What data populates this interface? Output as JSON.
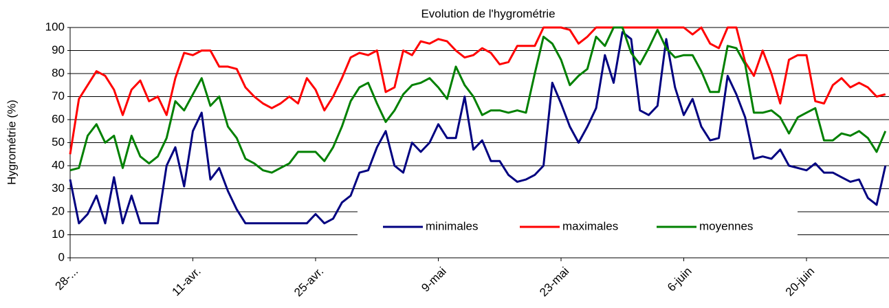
{
  "chart_data": {
    "type": "line",
    "title": "Evolution de l'hygrométrie",
    "y_label": "Hygrométrie (%)",
    "categories": [
      "28-...",
      null,
      null,
      null,
      null,
      null,
      null,
      null,
      null,
      null,
      null,
      null,
      null,
      null,
      "11-avr.",
      null,
      null,
      null,
      null,
      null,
      null,
      null,
      null,
      null,
      null,
      null,
      null,
      null,
      "25-avr.",
      null,
      null,
      null,
      null,
      null,
      null,
      null,
      null,
      null,
      null,
      null,
      null,
      null,
      "9-mai",
      null,
      null,
      null,
      null,
      null,
      null,
      null,
      null,
      null,
      null,
      null,
      null,
      null,
      "23-mai",
      null,
      null,
      null,
      null,
      null,
      null,
      null,
      null,
      null,
      null,
      null,
      null,
      null,
      "6-juin",
      null,
      null,
      null,
      null,
      null,
      null,
      null,
      null,
      null,
      null,
      null,
      null,
      null,
      "20-juin",
      null,
      null,
      null,
      null,
      null,
      null,
      null,
      null,
      null
    ],
    "series": [
      {
        "name": "minimales",
        "color": "#000080",
        "values": [
          34,
          15,
          19,
          27,
          15,
          35,
          15,
          27,
          15,
          15,
          15,
          40,
          48,
          31,
          55,
          63,
          34,
          39,
          29,
          21,
          15,
          15,
          15,
          15,
          15,
          15,
          15,
          15,
          19,
          15,
          17,
          24,
          27,
          37,
          38,
          48,
          55,
          40,
          37,
          50,
          46,
          50,
          58,
          52,
          52,
          70,
          47,
          51,
          42,
          42,
          36,
          33,
          34,
          36,
          40,
          76,
          67,
          57,
          50,
          57,
          65,
          88,
          76,
          98,
          95,
          64,
          62,
          66,
          95,
          74,
          62,
          69,
          57,
          51,
          52,
          79,
          71,
          61,
          43,
          44,
          43,
          47,
          40,
          39,
          38,
          41,
          37,
          37,
          35,
          33,
          34,
          26,
          23,
          40
        ]
      },
      {
        "name": "maximales",
        "color": "#ff0000",
        "values": [
          45,
          69,
          75,
          81,
          79,
          73,
          62,
          73,
          77,
          68,
          70,
          62,
          78,
          89,
          88,
          90,
          90,
          83,
          83,
          82,
          74,
          70,
          67,
          65,
          67,
          70,
          67,
          78,
          73,
          64,
          70,
          78,
          87,
          89,
          88,
          90,
          72,
          74,
          90,
          88,
          94,
          93,
          95,
          94,
          90,
          87,
          88,
          91,
          89,
          84,
          85,
          92,
          92,
          92,
          100,
          100,
          100,
          99,
          93,
          96,
          100,
          100,
          100,
          100,
          100,
          100,
          100,
          100,
          100,
          100,
          100,
          97,
          100,
          93,
          91,
          100,
          100,
          85,
          79,
          90,
          80,
          67,
          86,
          88,
          88,
          68,
          67,
          75,
          78,
          74,
          76,
          74,
          70,
          71
        ]
      },
      {
        "name": "moyennes",
        "color": "#008000",
        "values": [
          38,
          39,
          53,
          58,
          50,
          53,
          39,
          53,
          44,
          41,
          44,
          52,
          68,
          64,
          71,
          78,
          66,
          70,
          57,
          52,
          43,
          41,
          38,
          37,
          39,
          41,
          46,
          46,
          46,
          42,
          48,
          57,
          68,
          74,
          76,
          67,
          59,
          64,
          71,
          75,
          76,
          78,
          74,
          69,
          83,
          75,
          70,
          62,
          64,
          64,
          63,
          64,
          63,
          80,
          96,
          93,
          86,
          75,
          79,
          82,
          96,
          92,
          100,
          100,
          89,
          84,
          91,
          99,
          91,
          87,
          88,
          88,
          81,
          72,
          72,
          92,
          91,
          84,
          63,
          63,
          64,
          61,
          54,
          61,
          63,
          65,
          51,
          51,
          54,
          53,
          55,
          52,
          46,
          55
        ]
      }
    ],
    "ylim": [
      0,
      100
    ],
    "yticks": [
      0,
      10,
      20,
      30,
      40,
      50,
      60,
      70,
      80,
      90,
      100
    ],
    "grid": true
  }
}
